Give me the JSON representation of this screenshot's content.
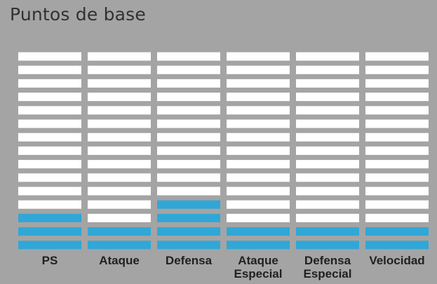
{
  "title": "Puntos de base",
  "chart_data": {
    "type": "bar",
    "title": "Puntos de base",
    "segments_per_bar": 15,
    "categories": [
      [
        "PS"
      ],
      [
        "Ataque"
      ],
      [
        "Defensa"
      ],
      [
        "Ataque",
        "Especial"
      ],
      [
        "Defensa",
        "Especial"
      ],
      [
        "Velocidad"
      ]
    ],
    "values": [
      3,
      2,
      4,
      2,
      2,
      2
    ],
    "colors": {
      "filled": "#30a7d7",
      "empty": "#ffffff",
      "background": "#a4a4a4",
      "text": "#212121"
    }
  }
}
